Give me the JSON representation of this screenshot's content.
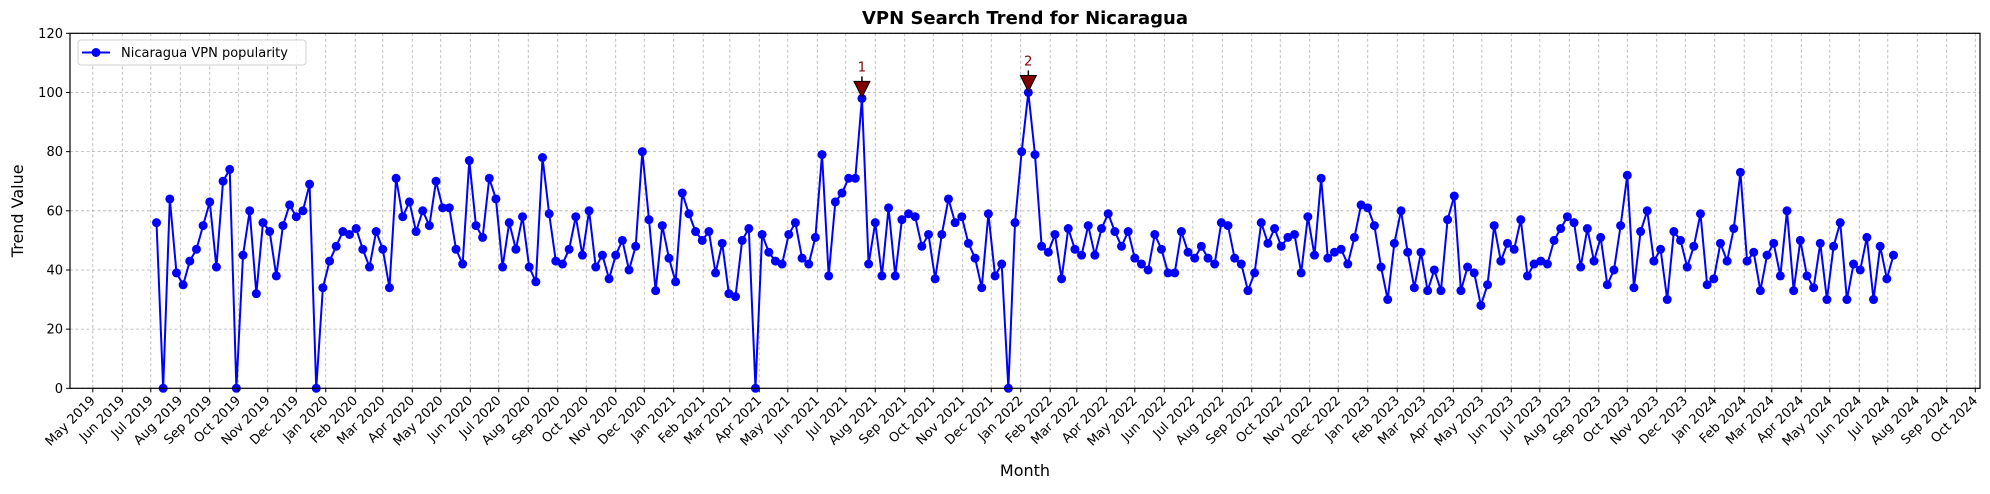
{
  "chart_data": {
    "type": "line",
    "title": "VPN Search Trend for Nicaragua",
    "xlabel": "Month",
    "ylabel": "Trend Value",
    "ylim": [
      0,
      120
    ],
    "xlim": [
      "2019-04-07",
      "2024-10-06"
    ],
    "yticks": [
      "0",
      "20",
      "40",
      "60",
      "80",
      "100",
      "120"
    ],
    "xticks": [
      "May 2019",
      "Jun 2019",
      "Jul 2019",
      "Aug 2019",
      "Sep 2019",
      "Oct 2019",
      "Nov 2019",
      "Dec 2019",
      "Jan 2020",
      "Feb 2020",
      "Mar 2020",
      "Apr 2020",
      "May 2020",
      "Jun 2020",
      "Jul 2020",
      "Aug 2020",
      "Sep 2020",
      "Oct 2020",
      "Nov 2020",
      "Dec 2020",
      "Jan 2021",
      "Feb 2021",
      "Mar 2021",
      "Apr 2021",
      "May 2021",
      "Jun 2021",
      "Jul 2021",
      "Aug 2021",
      "Sep 2021",
      "Oct 2021",
      "Nov 2021",
      "Dec 2021",
      "Jan 2022",
      "Feb 2022",
      "Mar 2022",
      "Apr 2022",
      "May 2022",
      "Jun 2022",
      "Jul 2022",
      "Aug 2022",
      "Sep 2022",
      "Oct 2022",
      "Nov 2022",
      "Dec 2022",
      "Jan 2023",
      "Feb 2023",
      "Mar 2023",
      "Apr 2023",
      "May 2023",
      "Jun 2023",
      "Jul 2023",
      "Aug 2023",
      "Sep 2023",
      "Oct 2023",
      "Nov 2023",
      "Dec 2023",
      "Jan 2024",
      "Feb 2024",
      "Mar 2024",
      "Apr 2024",
      "May 2024",
      "Jun 2024",
      "Jul 2024",
      "Aug 2024",
      "Sep 2024",
      "Oct 2024"
    ],
    "grid": true,
    "legend_position": "top-left",
    "series": [
      {
        "name": "Nicaragua VPN popularity",
        "color": "#0000ff",
        "marker": "circle",
        "x": [
          "2019-07-07",
          "2019-07-14",
          "2019-07-21",
          "2019-07-28",
          "2019-08-04",
          "2019-08-11",
          "2019-08-18",
          "2019-08-25",
          "2019-09-01",
          "2019-09-08",
          "2019-09-15",
          "2019-09-22",
          "2019-09-29",
          "2019-10-06",
          "2019-10-13",
          "2019-10-20",
          "2019-10-27",
          "2019-11-03",
          "2019-11-10",
          "2019-11-17",
          "2019-11-24",
          "2019-12-01",
          "2019-12-08",
          "2019-12-15",
          "2019-12-22",
          "2019-12-29",
          "2020-01-05",
          "2020-01-12",
          "2020-01-19",
          "2020-01-26",
          "2020-02-02",
          "2020-02-09",
          "2020-02-16",
          "2020-02-23",
          "2020-03-01",
          "2020-03-08",
          "2020-03-15",
          "2020-03-22",
          "2020-03-29",
          "2020-04-05",
          "2020-04-12",
          "2020-04-19",
          "2020-04-26",
          "2020-05-03",
          "2020-05-10",
          "2020-05-17",
          "2020-05-24",
          "2020-05-31",
          "2020-06-07",
          "2020-06-14",
          "2020-06-21",
          "2020-06-28",
          "2020-07-05",
          "2020-07-12",
          "2020-07-19",
          "2020-07-26",
          "2020-08-02",
          "2020-08-09",
          "2020-08-16",
          "2020-08-23",
          "2020-08-30",
          "2020-09-06",
          "2020-09-13",
          "2020-09-20",
          "2020-09-27",
          "2020-10-04",
          "2020-10-11",
          "2020-10-18",
          "2020-10-25",
          "2020-11-01",
          "2020-11-08",
          "2020-11-15",
          "2020-11-22",
          "2020-11-29",
          "2020-12-06",
          "2020-12-13",
          "2020-12-20",
          "2020-12-27",
          "2021-01-03",
          "2021-01-10",
          "2021-01-17",
          "2021-01-24",
          "2021-01-31",
          "2021-02-07",
          "2021-02-14",
          "2021-02-21",
          "2021-02-28",
          "2021-03-07",
          "2021-03-14",
          "2021-03-21",
          "2021-03-28",
          "2021-04-04",
          "2021-04-11",
          "2021-04-18",
          "2021-04-25",
          "2021-05-02",
          "2021-05-09",
          "2021-05-16",
          "2021-05-23",
          "2021-05-30",
          "2021-06-06",
          "2021-06-13",
          "2021-06-20",
          "2021-06-27",
          "2021-07-04",
          "2021-07-11",
          "2021-07-18",
          "2021-07-25",
          "2021-08-01",
          "2021-08-08",
          "2021-08-15",
          "2021-08-22",
          "2021-08-29",
          "2021-09-05",
          "2021-09-12",
          "2021-09-19",
          "2021-09-26",
          "2021-10-03",
          "2021-10-10",
          "2021-10-17",
          "2021-10-24",
          "2021-10-31",
          "2021-11-07",
          "2021-11-14",
          "2021-11-21",
          "2021-11-28",
          "2021-12-05",
          "2021-12-12",
          "2021-12-19",
          "2021-12-26",
          "2022-01-02",
          "2022-01-09",
          "2022-01-16",
          "2022-01-23",
          "2022-01-30",
          "2022-02-06",
          "2022-02-13",
          "2022-02-20",
          "2022-02-27",
          "2022-03-06",
          "2022-03-13",
          "2022-03-20",
          "2022-03-27",
          "2022-04-03",
          "2022-04-10",
          "2022-04-17",
          "2022-04-24",
          "2022-05-01",
          "2022-05-08",
          "2022-05-15",
          "2022-05-22",
          "2022-05-29",
          "2022-06-05",
          "2022-06-12",
          "2022-06-19",
          "2022-06-26",
          "2022-07-03",
          "2022-07-10",
          "2022-07-17",
          "2022-07-24",
          "2022-07-31",
          "2022-08-07",
          "2022-08-14",
          "2022-08-21",
          "2022-08-28",
          "2022-09-04",
          "2022-09-11",
          "2022-09-18",
          "2022-09-25",
          "2022-10-02",
          "2022-10-09",
          "2022-10-16",
          "2022-10-23",
          "2022-10-30",
          "2022-11-06",
          "2022-11-13",
          "2022-11-20",
          "2022-11-27",
          "2022-12-04",
          "2022-12-11",
          "2022-12-18",
          "2022-12-25",
          "2023-01-01",
          "2023-01-08",
          "2023-01-15",
          "2023-01-22",
          "2023-01-29",
          "2023-02-05",
          "2023-02-12",
          "2023-02-19",
          "2023-02-26",
          "2023-03-05",
          "2023-03-12",
          "2023-03-19",
          "2023-03-26",
          "2023-04-02",
          "2023-04-09",
          "2023-04-16",
          "2023-04-23",
          "2023-04-30",
          "2023-05-07",
          "2023-05-14",
          "2023-05-21",
          "2023-05-28",
          "2023-06-04",
          "2023-06-11",
          "2023-06-18",
          "2023-06-25",
          "2023-07-02",
          "2023-07-09",
          "2023-07-16",
          "2023-07-23",
          "2023-07-30",
          "2023-08-06",
          "2023-08-13",
          "2023-08-20",
          "2023-08-27",
          "2023-09-03",
          "2023-09-10",
          "2023-09-17",
          "2023-09-24",
          "2023-10-01",
          "2023-10-08",
          "2023-10-15",
          "2023-10-22",
          "2023-10-29",
          "2023-11-05",
          "2023-11-12",
          "2023-11-19",
          "2023-11-26",
          "2023-12-03",
          "2023-12-10",
          "2023-12-17",
          "2023-12-24",
          "2023-12-31",
          "2024-01-07",
          "2024-01-14",
          "2024-01-21",
          "2024-01-28",
          "2024-02-04",
          "2024-02-11",
          "2024-02-18",
          "2024-02-25",
          "2024-03-03",
          "2024-03-10",
          "2024-03-17",
          "2024-03-24",
          "2024-03-31",
          "2024-04-07",
          "2024-04-14",
          "2024-04-21",
          "2024-04-28",
          "2024-05-05",
          "2024-05-12",
          "2024-05-19",
          "2024-05-26",
          "2024-06-02",
          "2024-06-09",
          "2024-06-16",
          "2024-06-23",
          "2024-06-30",
          "2024-07-07"
        ],
        "values": [
          56,
          0,
          64,
          39,
          35,
          43,
          47,
          55,
          63,
          41,
          70,
          74,
          0,
          45,
          60,
          32,
          56,
          53,
          38,
          55,
          62,
          58,
          60,
          69,
          0,
          34,
          43,
          48,
          53,
          52,
          54,
          47,
          41,
          53,
          47,
          34,
          71,
          58,
          63,
          53,
          60,
          55,
          70,
          61,
          61,
          47,
          42,
          77,
          55,
          51,
          71,
          64,
          41,
          56,
          47,
          58,
          41,
          36,
          78,
          59,
          43,
          42,
          47,
          58,
          45,
          60,
          41,
          45,
          37,
          45,
          50,
          40,
          48,
          80,
          57,
          33,
          55,
          44,
          36,
          66,
          59,
          53,
          50,
          53,
          39,
          49,
          32,
          31,
          50,
          54,
          0,
          52,
          46,
          43,
          42,
          52,
          56,
          44,
          42,
          51,
          79,
          38,
          63,
          66,
          71,
          71,
          98,
          42,
          56,
          38,
          61,
          38,
          57,
          59,
          58,
          48,
          52,
          37,
          52,
          64,
          56,
          58,
          49,
          44,
          34,
          59,
          38,
          42,
          0,
          56,
          80,
          100,
          79,
          48,
          46,
          52,
          37,
          54,
          47,
          45,
          55,
          45,
          54,
          59,
          53,
          48,
          53,
          44,
          42,
          40,
          52,
          47,
          39,
          39,
          53,
          46,
          44,
          48,
          44,
          42,
          56,
          55,
          44,
          42,
          33,
          39,
          56,
          49,
          54,
          48,
          51,
          52,
          39,
          58,
          45,
          71,
          44,
          46,
          47,
          42,
          51,
          62,
          61,
          55,
          41,
          30,
          49,
          60,
          46,
          34,
          46,
          33,
          40,
          33,
          57,
          65,
          33,
          41,
          39,
          28,
          35,
          55,
          43,
          49,
          47,
          57,
          38,
          42,
          43,
          42,
          50,
          54,
          58,
          56,
          41,
          54,
          43,
          51,
          35,
          40,
          55,
          72,
          34,
          53,
          60,
          43,
          47,
          30,
          53,
          50,
          41,
          48,
          59,
          35,
          37,
          49,
          43,
          54,
          73,
          43,
          46,
          33,
          45,
          49,
          38,
          60,
          33,
          50,
          38,
          34,
          49,
          30,
          48,
          56,
          30,
          42,
          40,
          51,
          30,
          48,
          37,
          45
        ]
      }
    ],
    "annotations": [
      {
        "label": "1",
        "x": "2021-07-18",
        "y": 98,
        "color": "#800000"
      },
      {
        "label": "2",
        "x": "2022-01-09",
        "y": 100,
        "color": "#800000"
      }
    ]
  }
}
